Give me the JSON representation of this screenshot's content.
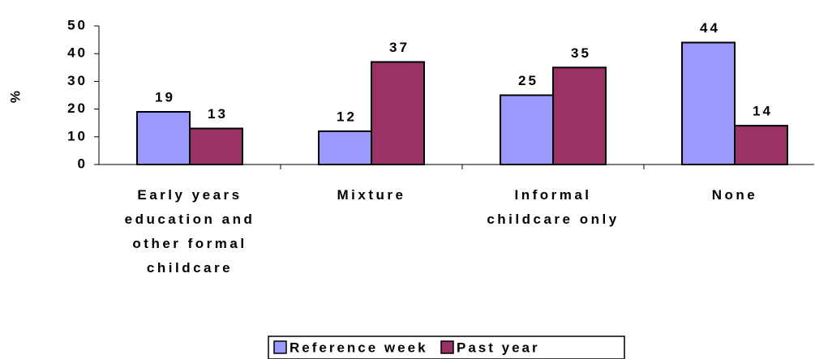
{
  "chart_data": {
    "type": "bar",
    "categories": [
      "Early years education and other formal childcare",
      "Mixture",
      "Informal childcare only",
      "None"
    ],
    "series": [
      {
        "name": "Reference week",
        "color": "#9999ff",
        "values": [
          19,
          12,
          25,
          44
        ]
      },
      {
        "name": "Past year",
        "color": "#993366",
        "values": [
          13,
          37,
          35,
          14
        ]
      }
    ],
    "y_label": "%",
    "ylim": [
      0,
      50
    ],
    "yticks": [
      0,
      10,
      20,
      30,
      40,
      50
    ],
    "legend": "bottom"
  }
}
